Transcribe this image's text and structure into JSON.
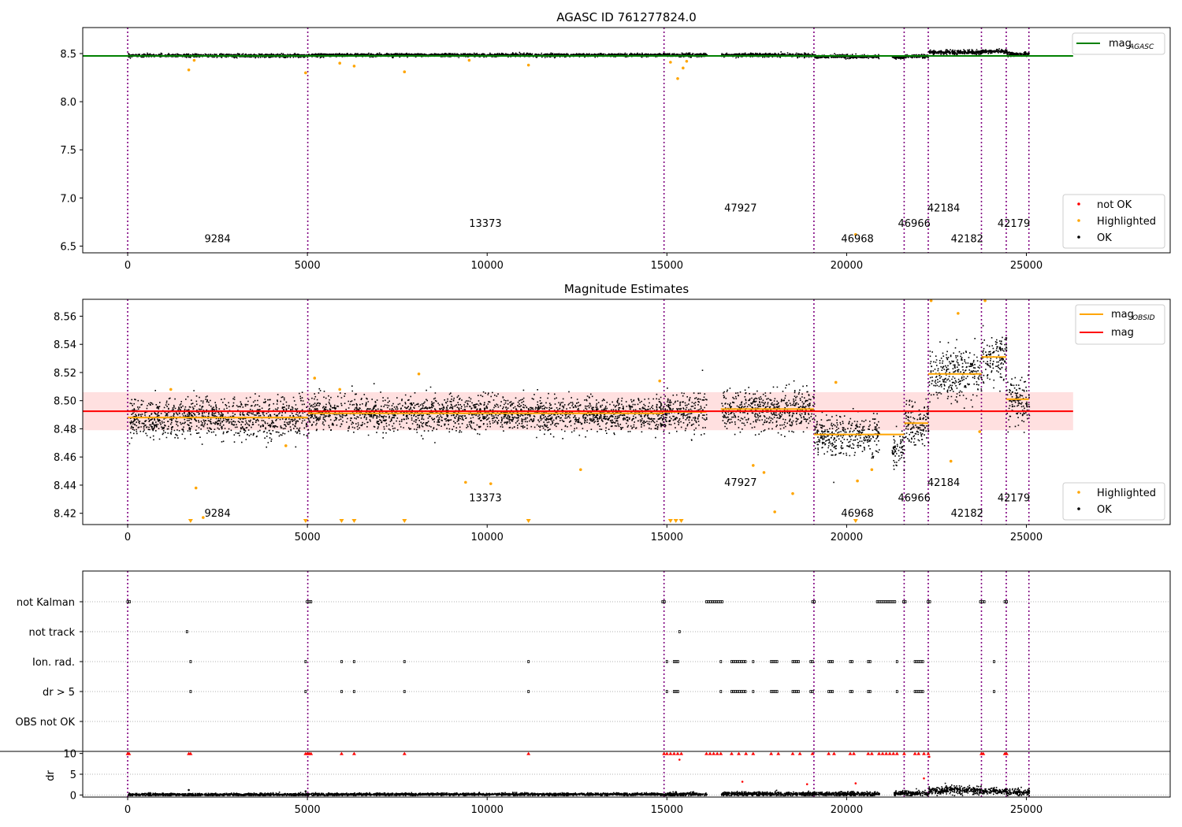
{
  "chart_data": [
    {
      "type": "scatter",
      "title": "AGASC ID 761277824.0",
      "xlabel": "",
      "ylabel": "",
      "xlim": [
        -1250,
        29000
      ],
      "ylim": [
        6.43,
        8.77
      ],
      "xticks": [
        0,
        5000,
        10000,
        15000,
        20000,
        25000
      ],
      "yticks": [
        6.5,
        7.0,
        7.5,
        8.0,
        8.5
      ],
      "ytick_labels": [
        "6.5",
        "7.0",
        "7.5",
        "8.0",
        "8.5"
      ],
      "grid": false,
      "legend_lines": {
        "position": "top-right",
        "entries": [
          {
            "label": "mag",
            "sub": "AGASC",
            "color": "#008000"
          }
        ]
      },
      "legend_points": {
        "position": "bottom-right",
        "entries": [
          {
            "label": "not OK",
            "color": "#ff0000"
          },
          {
            "label": "Highlighted",
            "color": "#ffa500"
          },
          {
            "label": "OK",
            "color": "#000000"
          }
        ]
      },
      "mag_agasc": 8.475,
      "obs_boundaries": [
        0,
        5010,
        14920,
        19090,
        21600,
        22270,
        23750,
        24440,
        25070
      ],
      "obs_labels": [
        {
          "text": "9284",
          "x": 2500,
          "y": 6.54
        },
        {
          "text": "13373",
          "x": 9950,
          "y": 6.7
        },
        {
          "text": "47927",
          "x": 17050,
          "y": 6.86
        },
        {
          "text": "46968",
          "x": 20300,
          "y": 6.54
        },
        {
          "text": "46966",
          "x": 21880,
          "y": 6.7
        },
        {
          "text": "42184",
          "x": 22700,
          "y": 6.86
        },
        {
          "text": "42182",
          "x": 23350,
          "y": 6.54
        },
        {
          "text": "42179",
          "x": 24650,
          "y": 6.7
        }
      ],
      "segments": [
        {
          "x0": 0,
          "x1": 5010,
          "mean": 8.485,
          "sd": 0.008
        },
        {
          "x0": 5010,
          "x1": 14920,
          "mean": 8.49,
          "sd": 0.008
        },
        {
          "x0": 14920,
          "x1": 16100,
          "mean": 8.49,
          "sd": 0.009
        },
        {
          "x0": 16500,
          "x1": 19090,
          "mean": 8.49,
          "sd": 0.009
        },
        {
          "x0": 19090,
          "x1": 20900,
          "mean": 8.475,
          "sd": 0.009
        },
        {
          "x0": 21250,
          "x1": 21600,
          "mean": 8.465,
          "sd": 0.008
        },
        {
          "x0": 21600,
          "x1": 22270,
          "mean": 8.478,
          "sd": 0.008
        },
        {
          "x0": 22270,
          "x1": 23750,
          "mean": 8.52,
          "sd": 0.01
        },
        {
          "x0": 23750,
          "x1": 24440,
          "mean": 8.53,
          "sd": 0.01
        },
        {
          "x0": 24440,
          "x1": 25070,
          "mean": 8.5,
          "sd": 0.01
        }
      ],
      "highlighted_outliers": [
        [
          1700,
          8.33
        ],
        [
          1850,
          8.43
        ],
        [
          4950,
          8.3
        ],
        [
          5900,
          8.4
        ],
        [
          6300,
          8.37
        ],
        [
          7700,
          8.31
        ],
        [
          9500,
          8.43
        ],
        [
          11150,
          8.38
        ],
        [
          15100,
          8.41
        ],
        [
          15300,
          8.24
        ],
        [
          15450,
          8.35
        ],
        [
          15550,
          8.42
        ],
        [
          20250,
          6.62
        ]
      ]
    },
    {
      "type": "scatter",
      "title": "Magnitude Estimates",
      "xlabel": "",
      "ylabel": "",
      "xlim": [
        -1250,
        29000
      ],
      "ylim": [
        8.412,
        8.572
      ],
      "xticks": [
        0,
        5000,
        10000,
        15000,
        20000,
        25000
      ],
      "yticks": [
        8.42,
        8.44,
        8.46,
        8.48,
        8.5,
        8.52,
        8.54,
        8.56
      ],
      "ytick_labels": [
        "8.42",
        "8.44",
        "8.46",
        "8.48",
        "8.50",
        "8.52",
        "8.54",
        "8.56"
      ],
      "grid": false,
      "legend_lines": {
        "position": "top-right",
        "entries": [
          {
            "label": "mag",
            "sub": "OBSID",
            "color": "#ffa500"
          },
          {
            "label": "mag",
            "sub": "",
            "color": "#ff0000"
          }
        ]
      },
      "legend_points": {
        "position": "bottom-right",
        "entries": [
          {
            "label": "Highlighted",
            "color": "#ffa500"
          },
          {
            "label": "OK",
            "color": "#000000"
          }
        ]
      },
      "mag": 8.4925,
      "mag_band": [
        8.479,
        8.506
      ],
      "mag_x_range": [
        0,
        26300
      ],
      "obsid_mags": [
        {
          "x0": 0,
          "x1": 5010,
          "mag": 8.488
        },
        {
          "x0": 5010,
          "x1": 14920,
          "mag": 8.491
        },
        {
          "x0": 14920,
          "x1": 16100,
          "mag": 8.492
        },
        {
          "x0": 16500,
          "x1": 19090,
          "mag": 8.494
        },
        {
          "x0": 19090,
          "x1": 21600,
          "mag": 8.476
        },
        {
          "x0": 21600,
          "x1": 22270,
          "mag": 8.484
        },
        {
          "x0": 22270,
          "x1": 23750,
          "mag": 8.519
        },
        {
          "x0": 23750,
          "x1": 24440,
          "mag": 8.531
        },
        {
          "x0": 24440,
          "x1": 25070,
          "mag": 8.501
        }
      ],
      "segments": [
        {
          "x0": 0,
          "x1": 5010,
          "mean": 8.488,
          "sd": 0.007
        },
        {
          "x0": 5010,
          "x1": 14920,
          "mean": 8.491,
          "sd": 0.006
        },
        {
          "x0": 14920,
          "x1": 16100,
          "mean": 8.492,
          "sd": 0.007
        },
        {
          "x0": 16500,
          "x1": 19090,
          "mean": 8.494,
          "sd": 0.007
        },
        {
          "x0": 19090,
          "x1": 20900,
          "mean": 8.476,
          "sd": 0.007
        },
        {
          "x0": 21250,
          "x1": 21600,
          "mean": 8.465,
          "sd": 0.006
        },
        {
          "x0": 21600,
          "x1": 22270,
          "mean": 8.484,
          "sd": 0.008
        },
        {
          "x0": 22270,
          "x1": 23750,
          "mean": 8.519,
          "sd": 0.009
        },
        {
          "x0": 23750,
          "x1": 24440,
          "mean": 8.531,
          "sd": 0.009
        },
        {
          "x0": 24440,
          "x1": 25070,
          "mean": 8.5,
          "sd": 0.009
        }
      ],
      "obs_boundaries": [
        0,
        5010,
        14920,
        19090,
        21600,
        22270,
        23750,
        24440,
        25070
      ],
      "obs_labels": [
        {
          "text": "9284",
          "x": 2500,
          "y": 8.4175
        },
        {
          "text": "13373",
          "x": 9950,
          "y": 8.4285
        },
        {
          "text": "47927",
          "x": 17050,
          "y": 8.4395
        },
        {
          "text": "46968",
          "x": 20300,
          "y": 8.4175
        },
        {
          "text": "46966",
          "x": 21880,
          "y": 8.4285
        },
        {
          "text": "42184",
          "x": 22700,
          "y": 8.4395
        },
        {
          "text": "42182",
          "x": 23350,
          "y": 8.4175
        },
        {
          "text": "42179",
          "x": 24650,
          "y": 8.4285
        }
      ],
      "highlighted_outliers": [
        [
          1200,
          8.508
        ],
        [
          1900,
          8.438
        ],
        [
          2100,
          8.417
        ],
        [
          4400,
          8.468
        ],
        [
          5200,
          8.516
        ],
        [
          5900,
          8.508
        ],
        [
          8100,
          8.519
        ],
        [
          9400,
          8.442
        ],
        [
          10100,
          8.441
        ],
        [
          12600,
          8.451
        ],
        [
          14800,
          8.514
        ],
        [
          17400,
          8.454
        ],
        [
          17700,
          8.449
        ],
        [
          18000,
          8.421
        ],
        [
          18500,
          8.434
        ],
        [
          19700,
          8.513
        ],
        [
          20300,
          8.443
        ],
        [
          20700,
          8.451
        ],
        [
          22350,
          8.571
        ],
        [
          22900,
          8.457
        ],
        [
          23100,
          8.562
        ],
        [
          23700,
          8.478
        ],
        [
          23850,
          8.571
        ]
      ],
      "offscale_low_x": [
        1750,
        4950,
        5950,
        6300,
        7700,
        11150,
        15100,
        15250,
        15400,
        20250
      ]
    },
    {
      "type": "scatter",
      "title": "",
      "xlabel": "",
      "xlim": [
        -1250,
        29000
      ],
      "xticks": [
        0,
        5000,
        10000,
        15000,
        20000,
        25000
      ],
      "flags_panel": {
        "categories": [
          "not Kalman",
          "not track",
          "Ion. rad.",
          "dr > 5",
          "OBS not OK"
        ],
        "flagged": {
          "not Kalman": [
            [
              0,
              80
            ],
            [
              4990,
              5150
            ],
            [
              14880,
              14980
            ],
            [
              16100,
              16550
            ],
            [
              19050,
              19150
            ],
            [
              20850,
              21350
            ],
            [
              21580,
              21650
            ],
            [
              22260,
              22320
            ],
            [
              23720,
              23830
            ],
            [
              24400,
              24470
            ]
          ],
          "not track": [
            [
              1650,
              1700
            ],
            [
              15350,
              15380
            ]
          ],
          "Ion. rad.": [
            [
              1750,
              1790
            ],
            [
              4950,
              4980
            ],
            [
              5950,
              5980
            ],
            [
              6300,
              6330
            ],
            [
              7700,
              7730
            ],
            [
              11150,
              11180
            ],
            [
              15000,
              15050
            ],
            [
              15200,
              15350
            ],
            [
              16500,
              16550
            ],
            [
              16800,
              17200
            ],
            [
              17400,
              17450
            ],
            [
              17900,
              18100
            ],
            [
              18500,
              18700
            ],
            [
              19000,
              19100
            ],
            [
              19500,
              19650
            ],
            [
              20100,
              20200
            ],
            [
              20600,
              20700
            ],
            [
              21400,
              21450
            ],
            [
              21900,
              22150
            ],
            [
              24100,
              24130
            ]
          ],
          "dr > 5": [
            [
              1750,
              1790
            ],
            [
              4950,
              4980
            ],
            [
              5950,
              5980
            ],
            [
              6300,
              6330
            ],
            [
              7700,
              7730
            ],
            [
              11150,
              11180
            ],
            [
              15000,
              15050
            ],
            [
              15200,
              15350
            ],
            [
              16500,
              16550
            ],
            [
              16800,
              17200
            ],
            [
              17400,
              17450
            ],
            [
              17900,
              18100
            ],
            [
              18500,
              18700
            ],
            [
              19000,
              19100
            ],
            [
              19500,
              19650
            ],
            [
              20100,
              20200
            ],
            [
              20600,
              20700
            ],
            [
              21400,
              21450
            ],
            [
              21900,
              22150
            ],
            [
              24100,
              24130
            ]
          ],
          "OBS not OK": []
        }
      },
      "dr_panel": {
        "ylabel": "dr",
        "ylim": [
          -0.5,
          10.5
        ],
        "yticks": [
          0,
          5,
          10
        ],
        "ytick_labels": [
          "0",
          "5",
          "10"
        ],
        "segments": [
          {
            "x0": 0,
            "x1": 5010,
            "mean": 0.25,
            "sd": 0.15
          },
          {
            "x0": 5010,
            "x1": 14920,
            "mean": 0.3,
            "sd": 0.15
          },
          {
            "x0": 14920,
            "x1": 16100,
            "mean": 0.35,
            "sd": 0.2
          },
          {
            "x0": 16500,
            "x1": 19090,
            "mean": 0.4,
            "sd": 0.25
          },
          {
            "x0": 19090,
            "x1": 20900,
            "mean": 0.4,
            "sd": 0.25
          },
          {
            "x0": 21300,
            "x1": 22270,
            "mean": 0.5,
            "sd": 0.3
          },
          {
            "x0": 22270,
            "x1": 23750,
            "mean": 1.3,
            "sd": 0.5
          },
          {
            "x0": 23750,
            "x1": 24440,
            "mean": 1.0,
            "sd": 0.4
          },
          {
            "x0": 24440,
            "x1": 25070,
            "mean": 0.8,
            "sd": 0.4
          }
        ],
        "clipped_x": [
          0,
          40,
          1700,
          1750,
          4950,
          5000,
          5050,
          5100,
          5950,
          6300,
          7700,
          11150,
          14920,
          15000,
          15100,
          15200,
          15300,
          15400,
          16100,
          16200,
          16300,
          16400,
          16500,
          16800,
          17000,
          17200,
          17400,
          17900,
          18100,
          18500,
          18700,
          19050,
          19500,
          19650,
          20100,
          20200,
          20600,
          20700,
          20900,
          21000,
          21100,
          21200,
          21300,
          21400,
          21600,
          21900,
          22000,
          22150,
          22270,
          23750,
          23800,
          24400,
          24450
        ],
        "red_points": [
          [
            15350,
            8.5
          ],
          [
            17100,
            3.2
          ],
          [
            20250,
            2.8
          ],
          [
            22150,
            4.0
          ],
          [
            22300,
            9.2
          ],
          [
            18900,
            2.6
          ]
        ],
        "black_outliers": [
          [
            1700,
            1.2
          ],
          [
            4950,
            0.9
          ],
          [
            15250,
            0.7
          ]
        ]
      }
    }
  ]
}
